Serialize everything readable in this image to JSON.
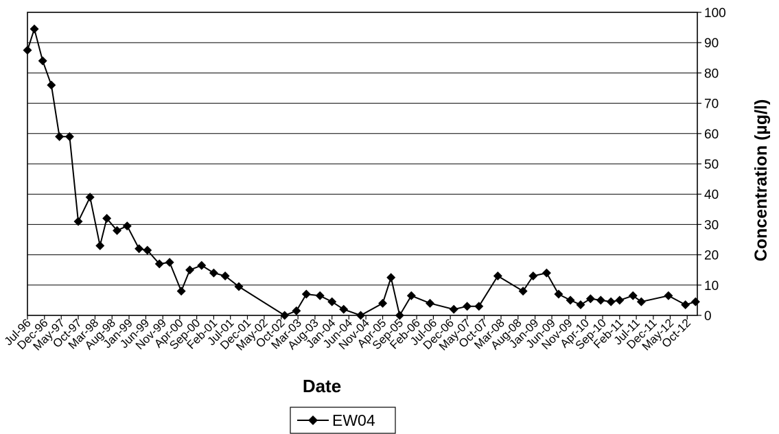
{
  "chart_data": {
    "type": "line",
    "xlabel": "Date",
    "ylabel": "Concentration (µg/l)",
    "ylim": [
      0,
      100
    ],
    "yticks": [
      0,
      10,
      20,
      30,
      40,
      50,
      60,
      70,
      80,
      90,
      100
    ],
    "grid": true,
    "legend_position": "bottom",
    "line_color": "#000000",
    "x_tick_labels": [
      "Jul-96",
      "Dec-96",
      "May-97",
      "Oct-97",
      "Mar-98",
      "Aug-98",
      "Jan-99",
      "Jun-99",
      "Nov-99",
      "Apr-00",
      "Sep-00",
      "Feb-01",
      "Jul-01",
      "Dec-01",
      "May-02",
      "Oct-02",
      "Mar-03",
      "Aug-03",
      "Jan-04",
      "Jun-04",
      "Nov-04",
      "Apr-05",
      "Sep-05",
      "Feb-06",
      "Jul-06",
      "Dec-06",
      "May-07",
      "Oct-07",
      "Mar-08",
      "Aug-08",
      "Jan-09",
      "Jun-09",
      "Nov-09",
      "Apr-10",
      "Sep-10",
      "Feb-11",
      "Jul-11",
      "Dec-11",
      "May-12",
      "Oct-12"
    ],
    "series": [
      {
        "name": "EW04",
        "marker": "diamond",
        "points": [
          [
            "1996-07-01",
            87.5
          ],
          [
            "1996-09-01",
            94.5
          ],
          [
            "1996-11-15",
            84
          ],
          [
            "1997-02-01",
            76
          ],
          [
            "1997-04-15",
            59
          ],
          [
            "1997-07-15",
            59
          ],
          [
            "1997-10-01",
            31
          ],
          [
            "1998-01-15",
            39
          ],
          [
            "1998-04-15",
            23
          ],
          [
            "1998-06-15",
            32
          ],
          [
            "1998-09-15",
            28
          ],
          [
            "1998-12-15",
            29.5
          ],
          [
            "1999-04-01",
            22
          ],
          [
            "1999-06-15",
            21.5
          ],
          [
            "1999-10-01",
            17
          ],
          [
            "2000-01-01",
            17.5
          ],
          [
            "2000-04-15",
            8
          ],
          [
            "2000-07-01",
            15
          ],
          [
            "2000-10-15",
            16.5
          ],
          [
            "2001-02-01",
            14
          ],
          [
            "2001-05-15",
            13
          ],
          [
            "2001-09-15",
            9.5
          ],
          [
            "2002-11-01",
            0
          ],
          [
            "2003-02-15",
            1.5
          ],
          [
            "2003-05-15",
            7
          ],
          [
            "2003-09-15",
            6.5
          ],
          [
            "2004-01-01",
            4.5
          ],
          [
            "2004-04-15",
            2
          ],
          [
            "2004-09-15",
            0
          ],
          [
            "2005-04-01",
            4
          ],
          [
            "2005-06-15",
            12.5
          ],
          [
            "2005-09-01",
            0
          ],
          [
            "2005-12-15",
            6.5
          ],
          [
            "2006-06-01",
            4
          ],
          [
            "2007-01-01",
            2
          ],
          [
            "2007-05-01",
            3
          ],
          [
            "2007-08-15",
            3
          ],
          [
            "2008-02-01",
            13
          ],
          [
            "2008-09-15",
            8
          ],
          [
            "2008-12-15",
            13
          ],
          [
            "2009-04-15",
            14
          ],
          [
            "2009-08-01",
            7
          ],
          [
            "2009-11-15",
            5
          ],
          [
            "2010-02-15",
            3.5
          ],
          [
            "2010-05-15",
            5.5
          ],
          [
            "2010-08-15",
            5
          ],
          [
            "2010-11-15",
            4.5
          ],
          [
            "2011-02-01",
            5
          ],
          [
            "2011-06-01",
            6.5
          ],
          [
            "2011-08-15",
            4.5
          ],
          [
            "2012-04-15",
            6.5
          ],
          [
            "2012-09-15",
            3.5
          ],
          [
            "2012-12-15",
            4.5
          ]
        ]
      }
    ]
  }
}
